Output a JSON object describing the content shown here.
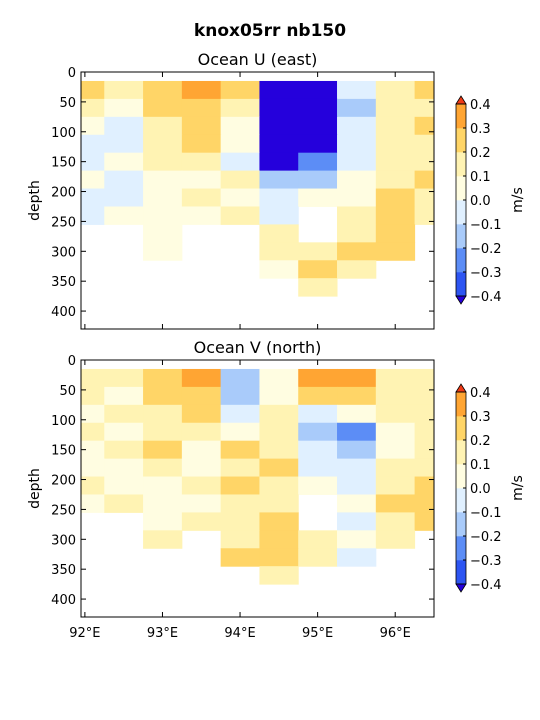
{
  "figure": {
    "title": "knox05rr nb150"
  },
  "chart_data": [
    {
      "type": "heatmap",
      "title": "Ocean U (east)",
      "xlabel": "",
      "ylabel": "depth",
      "xlim": [
        91.95,
        96.5
      ],
      "ylim": [
        430,
        0
      ],
      "xticks": [
        92,
        93,
        94,
        95,
        96
      ],
      "xticklabels": [],
      "yticks": [
        0,
        50,
        100,
        150,
        200,
        250,
        300,
        350,
        400
      ],
      "colorbar": {
        "label": "m/s",
        "levels": [
          -0.4,
          -0.3,
          -0.2,
          -0.1,
          0.0,
          0.1,
          0.2,
          0.3,
          0.4
        ],
        "ticklabels": [
          "−0.4",
          "−0.3",
          "−0.2",
          "−0.1",
          "0.0",
          "0.1",
          "0.2",
          "0.3",
          "0.4"
        ]
      },
      "lon": [
        92.0,
        92.5,
        93.0,
        93.5,
        94.0,
        94.5,
        95.0,
        95.5,
        96.0,
        96.5
      ],
      "depth": [
        30,
        60,
        90,
        120,
        150,
        180,
        210,
        240,
        270,
        300,
        330,
        360
      ],
      "values": [
        [
          0.2,
          0.1,
          0.2,
          0.3,
          0.2,
          -0.6,
          -0.6,
          -0.1,
          0.1,
          0.2
        ],
        [
          0.1,
          0.0,
          0.2,
          0.2,
          0.1,
          -0.6,
          -0.6,
          -0.2,
          0.1,
          0.1
        ],
        [
          0.0,
          -0.1,
          0.1,
          0.2,
          0.0,
          -0.5,
          -0.5,
          -0.1,
          0.1,
          0.2
        ],
        [
          -0.1,
          -0.1,
          0.1,
          0.2,
          0.0,
          -0.5,
          -0.4,
          -0.1,
          0.1,
          0.1
        ],
        [
          -0.1,
          0.0,
          0.1,
          0.1,
          -0.1,
          -0.4,
          -0.3,
          -0.1,
          0.1,
          0.1
        ],
        [
          0.0,
          -0.1,
          0.0,
          0.0,
          0.1,
          -0.2,
          -0.2,
          0.0,
          0.1,
          0.2
        ],
        [
          -0.1,
          -0.1,
          0.0,
          0.1,
          0.0,
          -0.1,
          0.0,
          0.0,
          0.2,
          0.1
        ],
        [
          -0.1,
          0.0,
          0.0,
          0.0,
          0.1,
          -0.1,
          null,
          0.1,
          0.2,
          0.1
        ],
        [
          null,
          null,
          0.0,
          null,
          null,
          0.1,
          null,
          0.1,
          0.2,
          null
        ],
        [
          null,
          null,
          0.0,
          null,
          null,
          0.1,
          0.1,
          0.2,
          0.2,
          null
        ],
        [
          null,
          null,
          null,
          null,
          null,
          0.0,
          0.2,
          0.1,
          null,
          null
        ],
        [
          null,
          null,
          null,
          null,
          null,
          null,
          0.1,
          null,
          null,
          null
        ]
      ]
    },
    {
      "type": "heatmap",
      "title": "Ocean V (north)",
      "xlabel": "",
      "ylabel": "depth",
      "xlim": [
        91.95,
        96.5
      ],
      "ylim": [
        430,
        0
      ],
      "xticks": [
        92,
        93,
        94,
        95,
        96
      ],
      "xticklabels": [
        "92°E",
        "93°E",
        "94°E",
        "95°E",
        "96°E"
      ],
      "yticks": [
        0,
        50,
        100,
        150,
        200,
        250,
        300,
        350,
        400
      ],
      "colorbar": {
        "label": "m/s",
        "levels": [
          -0.4,
          -0.3,
          -0.2,
          -0.1,
          0.0,
          0.1,
          0.2,
          0.3,
          0.4
        ],
        "ticklabels": [
          "−0.4",
          "−0.3",
          "−0.2",
          "−0.1",
          "0.0",
          "0.1",
          "0.2",
          "0.3",
          "0.4"
        ]
      },
      "lon": [
        92.0,
        92.5,
        93.0,
        93.5,
        94.0,
        94.5,
        95.0,
        95.5,
        96.0,
        96.5
      ],
      "depth": [
        30,
        60,
        90,
        120,
        150,
        180,
        210,
        240,
        270,
        300,
        330,
        360
      ],
      "values": [
        [
          0.1,
          0.1,
          0.2,
          0.3,
          -0.2,
          0.0,
          0.3,
          0.3,
          0.1,
          0.1
        ],
        [
          0.1,
          0.0,
          0.2,
          0.2,
          -0.2,
          0.0,
          0.2,
          0.2,
          0.1,
          0.1
        ],
        [
          0.0,
          0.1,
          0.1,
          0.2,
          -0.1,
          0.1,
          -0.1,
          0.0,
          0.1,
          0.1
        ],
        [
          0.1,
          0.0,
          0.1,
          0.1,
          0.0,
          0.1,
          -0.2,
          -0.3,
          0.0,
          0.1
        ],
        [
          0.0,
          0.1,
          0.2,
          0.0,
          0.2,
          0.1,
          -0.1,
          -0.2,
          0.0,
          0.1
        ],
        [
          0.0,
          0.0,
          0.1,
          0.0,
          0.1,
          0.2,
          -0.1,
          -0.1,
          0.1,
          0.1
        ],
        [
          0.1,
          0.0,
          0.0,
          0.1,
          0.2,
          0.1,
          0.0,
          -0.1,
          0.1,
          0.2
        ],
        [
          0.0,
          0.1,
          0.0,
          0.0,
          0.1,
          0.1,
          null,
          0.0,
          0.2,
          0.2
        ],
        [
          null,
          null,
          0.0,
          0.1,
          0.1,
          0.2,
          null,
          -0.1,
          0.1,
          0.2
        ],
        [
          null,
          null,
          0.1,
          null,
          0.1,
          0.2,
          0.1,
          0.0,
          0.1,
          null
        ],
        [
          null,
          null,
          null,
          null,
          0.2,
          0.2,
          0.1,
          -0.1,
          null,
          null
        ],
        [
          null,
          null,
          null,
          null,
          null,
          0.1,
          null,
          null,
          null,
          null
        ]
      ]
    }
  ],
  "colors": {
    "palette": [
      "#2500dc",
      "#2d55f2",
      "#5c8df6",
      "#a9cbfa",
      "#e0f0ff",
      "#fffde1",
      "#fff3b3",
      "#ffd567",
      "#ffa533",
      "#ff7e22",
      "#ef3a16"
    ],
    "axes": "#000000",
    "background": "#ffffff"
  }
}
